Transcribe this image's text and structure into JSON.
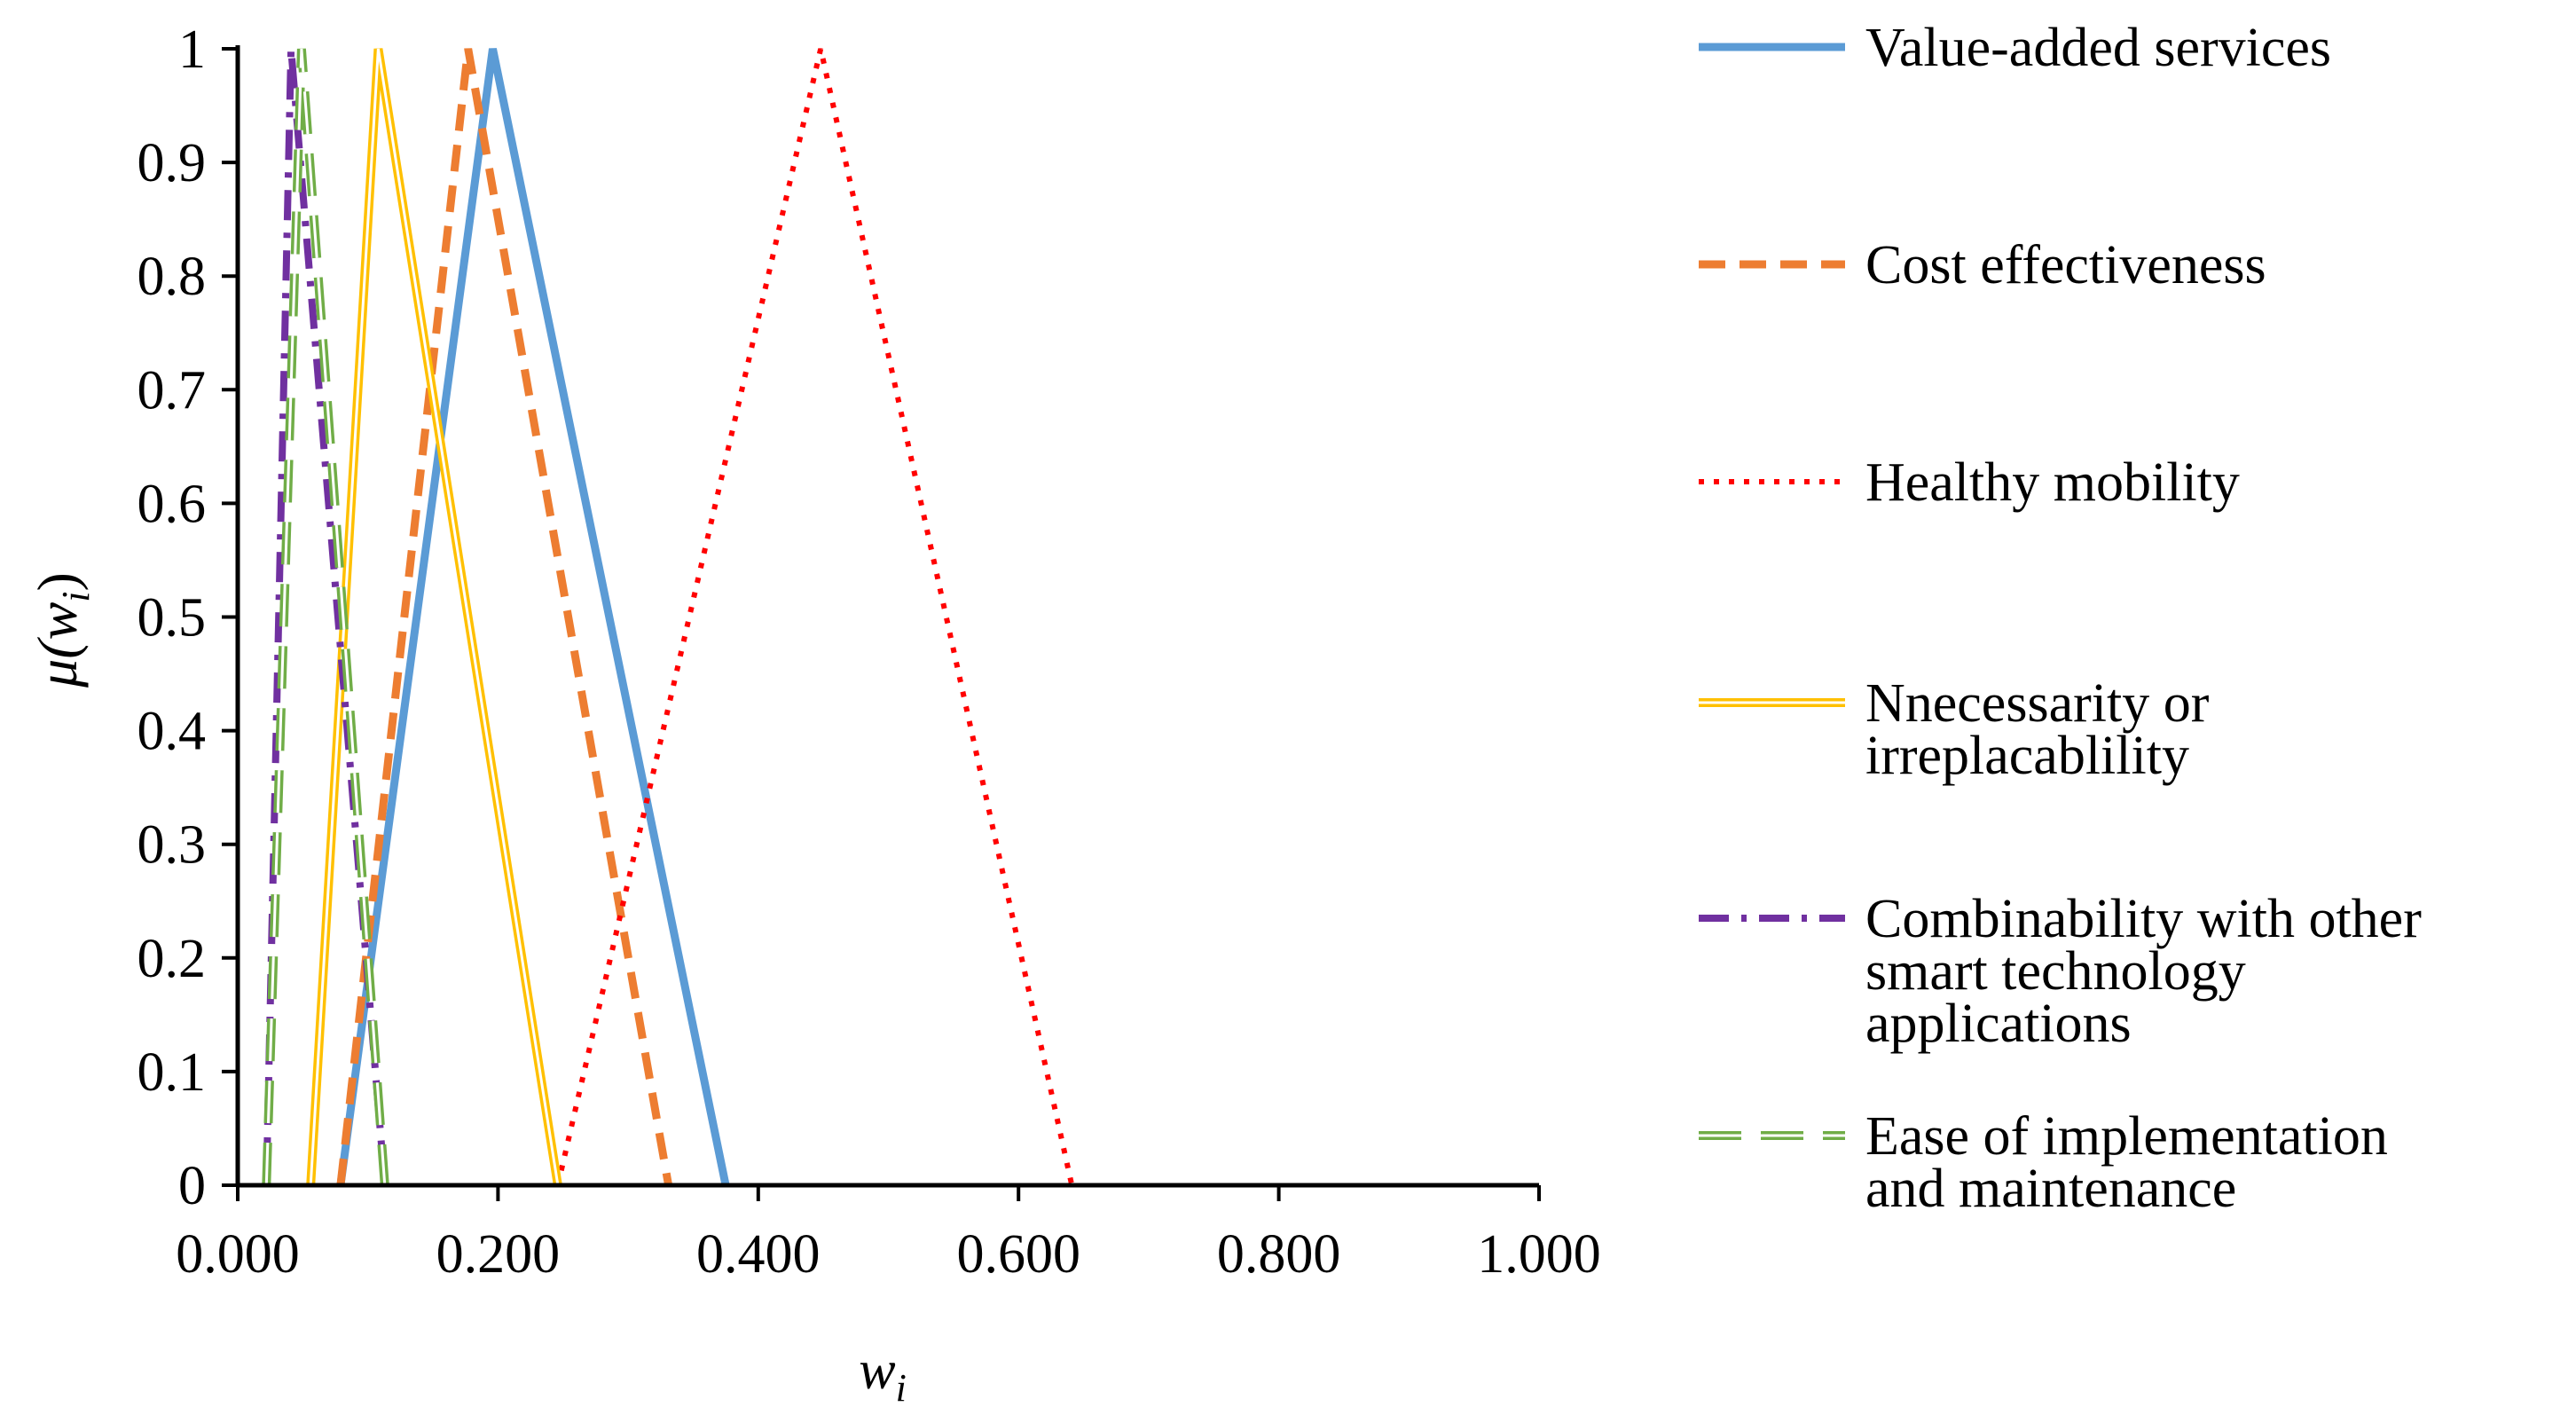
{
  "chart_data": {
    "type": "line",
    "title": "",
    "xlabel": {
      "base": "w",
      "subscript": "i"
    },
    "ylabel": {
      "prefix": "μ(",
      "base": "w",
      "subscript": "i",
      "suffix": ")"
    },
    "xlim": [
      0,
      1
    ],
    "ylim": [
      0,
      1
    ],
    "grid": false,
    "legend_position": "right",
    "x_ticks": [
      0,
      0.2,
      0.4,
      0.6,
      0.8,
      1.0
    ],
    "x_tick_labels": [
      "0.000",
      "0.200",
      "0.400",
      "0.600",
      "0.800",
      "1.000"
    ],
    "y_ticks": [
      0,
      0.1,
      0.2,
      0.3,
      0.4,
      0.5,
      0.6,
      0.7,
      0.8,
      0.9,
      1
    ],
    "y_tick_labels": [
      "0",
      "0.1",
      "0.2",
      "0.3",
      "0.4",
      "0.5",
      "0.6",
      "0.7",
      "0.8",
      "0.9",
      "1"
    ],
    "series": [
      {
        "name": "Value-added services",
        "legend_lines": [
          "Value-added services"
        ],
        "color": "#5B9BD5",
        "style": "solid",
        "x": [
          0.079,
          0.196,
          0.375
        ],
        "y": [
          0,
          1,
          0
        ]
      },
      {
        "name": "Cost effectiveness",
        "legend_lines": [
          "Cost effectiveness"
        ],
        "color": "#ED7D31",
        "style": "dashed",
        "x": [
          0.079,
          0.177,
          0.331
        ],
        "y": [
          0,
          1,
          0
        ]
      },
      {
        "name": "Healthy mobility",
        "legend_lines": [
          "Healthy mobility"
        ],
        "color": "#FF0000",
        "style": "dotted",
        "x": [
          0.246,
          0.448,
          0.641
        ],
        "y": [
          0,
          1,
          0
        ]
      },
      {
        "name": "Nnecessarity or irreplacablility",
        "legend_lines": [
          "Nnecessarity or",
          "irreplacablility"
        ],
        "color": "#FFC000",
        "style": "double",
        "x": [
          0.056,
          0.108,
          0.246
        ],
        "y": [
          0,
          1,
          0
        ]
      },
      {
        "name": "Combinability with other smart technology applications",
        "legend_lines": [
          "Combinability with other",
          "smart technology",
          "applications"
        ],
        "color": "#7030A0",
        "style": "dashdot",
        "x": [
          0.022,
          0.041,
          0.113
        ],
        "y": [
          0,
          1,
          0
        ]
      },
      {
        "name": "Ease of implementation and maintenance",
        "legend_lines": [
          "Ease of implementation",
          "and maintenance"
        ],
        "color": "#70AD47",
        "style": "longdash-double",
        "x": [
          0.022,
          0.049,
          0.113
        ],
        "y": [
          0,
          1,
          0
        ]
      }
    ]
  }
}
